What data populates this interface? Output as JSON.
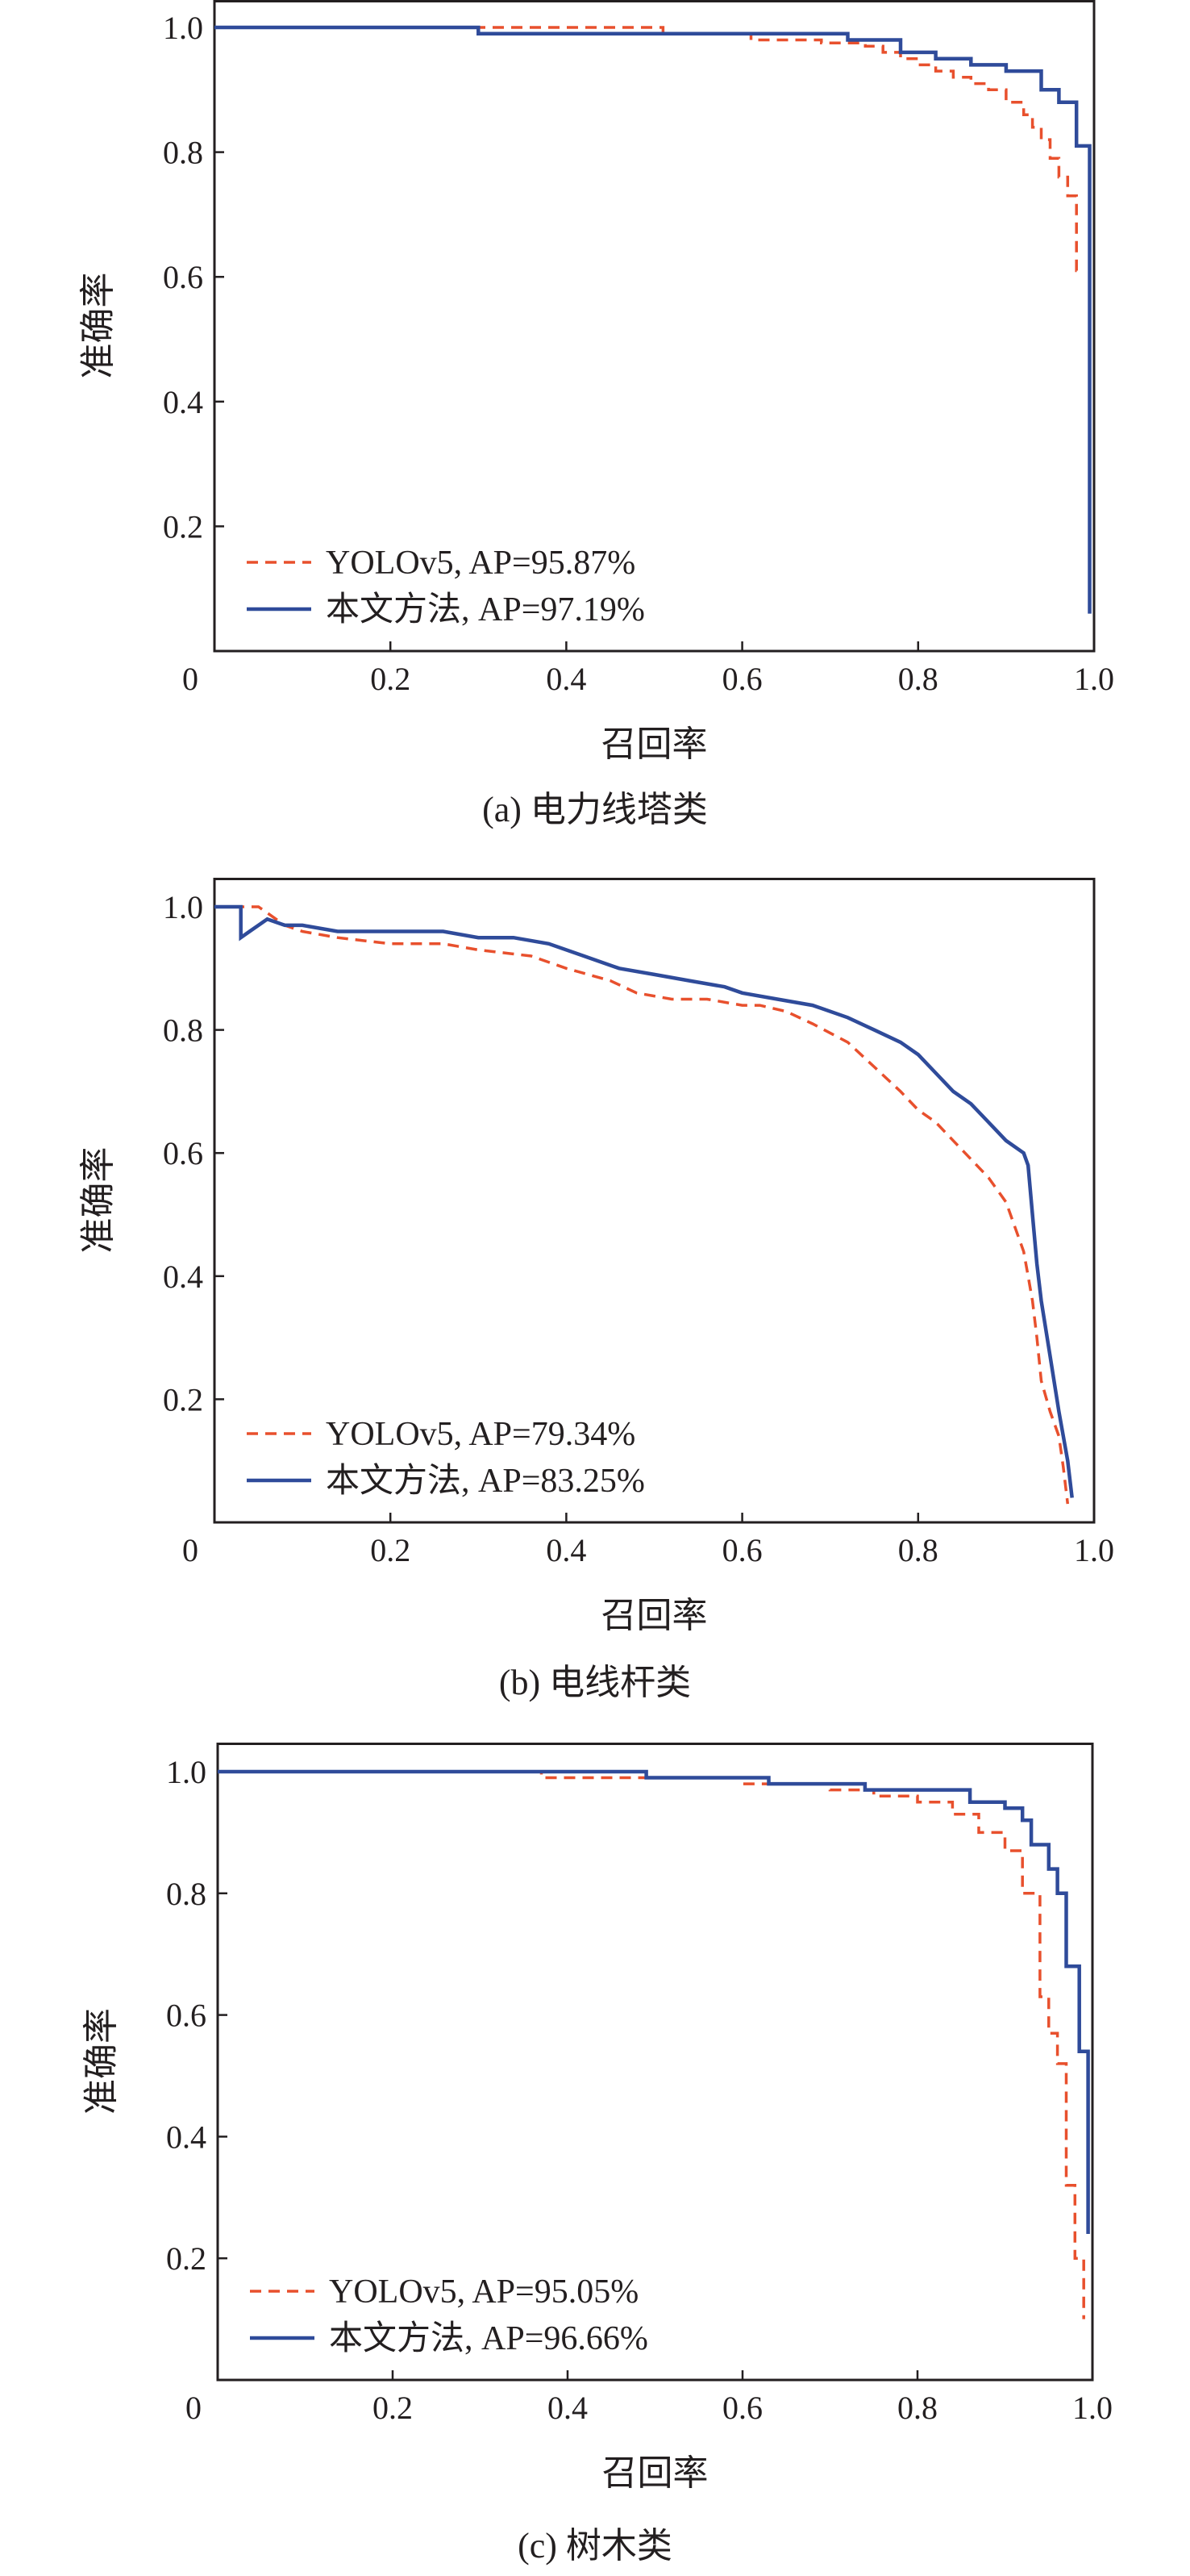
{
  "figure": {
    "panels": [
      {
        "caption": "(a) 电力线塔类"
      },
      {
        "caption": "(b) 电线杆类"
      },
      {
        "caption": "(c) 树木类"
      }
    ]
  },
  "colors": {
    "yolo": "#e8502d",
    "ours": "#2f4b9a",
    "frame": "#231f20"
  },
  "chart_data": [
    {
      "type": "line",
      "caption": "(a) 电力线塔类",
      "xlabel": "召回率",
      "ylabel": "准确率",
      "xlim": [
        0,
        1.0
      ],
      "ylim": [
        0,
        1.0
      ],
      "xticks": [
        "0",
        "0.2",
        "0.4",
        "0.6",
        "0.8",
        "1.0"
      ],
      "yticks": [
        "0.2",
        "0.4",
        "0.6",
        "0.8",
        "1.0"
      ],
      "grid": false,
      "legend": "bottom-left",
      "series": [
        {
          "name": "YOLOv5, AP=95.87%",
          "style": "dashed",
          "color": "#e8502d",
          "x": [
            0.0,
            0.51,
            0.51,
            0.61,
            0.61,
            0.69,
            0.69,
            0.74,
            0.74,
            0.76,
            0.76,
            0.78,
            0.78,
            0.8,
            0.8,
            0.82,
            0.82,
            0.84,
            0.84,
            0.86,
            0.86,
            0.88,
            0.88,
            0.9,
            0.9,
            0.92,
            0.92,
            0.93,
            0.93,
            0.94,
            0.94,
            0.95,
            0.95,
            0.96,
            0.96,
            0.97,
            0.97,
            0.98,
            0.98,
            0.985
          ],
          "y": [
            1.0,
            1.0,
            0.99,
            0.99,
            0.98,
            0.98,
            0.975,
            0.975,
            0.97,
            0.97,
            0.96,
            0.96,
            0.95,
            0.95,
            0.94,
            0.94,
            0.93,
            0.93,
            0.92,
            0.92,
            0.91,
            0.91,
            0.9,
            0.9,
            0.88,
            0.88,
            0.86,
            0.86,
            0.84,
            0.84,
            0.82,
            0.82,
            0.79,
            0.79,
            0.76,
            0.76,
            0.73,
            0.73,
            0.61,
            0.61
          ]
        },
        {
          "name": "本文方法, AP=97.19%",
          "style": "solid",
          "color": "#2f4b9a",
          "x": [
            0.0,
            0.3,
            0.3,
            0.72,
            0.72,
            0.78,
            0.78,
            0.82,
            0.82,
            0.86,
            0.86,
            0.9,
            0.9,
            0.94,
            0.94,
            0.96,
            0.96,
            0.98,
            0.98,
            0.995,
            0.995
          ],
          "y": [
            1.0,
            1.0,
            0.99,
            0.99,
            0.98,
            0.98,
            0.96,
            0.96,
            0.95,
            0.95,
            0.94,
            0.94,
            0.93,
            0.93,
            0.9,
            0.9,
            0.88,
            0.88,
            0.81,
            0.81,
            0.06
          ]
        }
      ]
    },
    {
      "type": "line",
      "caption": "(b) 电线杆类",
      "xlabel": "召回率",
      "ylabel": "准确率",
      "xlim": [
        0,
        1.0
      ],
      "ylim": [
        0,
        1.0
      ],
      "xticks": [
        "0",
        "0.2",
        "0.4",
        "0.6",
        "0.8",
        "1.0"
      ],
      "yticks": [
        "0.2",
        "0.4",
        "0.6",
        "0.8",
        "1.0"
      ],
      "grid": false,
      "legend": "bottom-left",
      "series": [
        {
          "name": "YOLOv5, AP=79.34%",
          "style": "dashed",
          "color": "#e8502d",
          "x": [
            0.0,
            0.05,
            0.06,
            0.08,
            0.1,
            0.14,
            0.2,
            0.26,
            0.3,
            0.36,
            0.4,
            0.45,
            0.48,
            0.52,
            0.56,
            0.6,
            0.62,
            0.65,
            0.68,
            0.72,
            0.75,
            0.78,
            0.8,
            0.82,
            0.84,
            0.86,
            0.88,
            0.9,
            0.91,
            0.92,
            0.925,
            0.93,
            0.935,
            0.94,
            0.95,
            0.96,
            0.965,
            0.97
          ],
          "y": [
            1.0,
            1.0,
            0.99,
            0.97,
            0.96,
            0.95,
            0.94,
            0.94,
            0.93,
            0.92,
            0.9,
            0.88,
            0.86,
            0.85,
            0.85,
            0.84,
            0.84,
            0.83,
            0.81,
            0.78,
            0.74,
            0.7,
            0.67,
            0.65,
            0.62,
            0.59,
            0.56,
            0.52,
            0.48,
            0.44,
            0.4,
            0.36,
            0.3,
            0.23,
            0.18,
            0.14,
            0.09,
            0.03
          ]
        },
        {
          "name": "本文方法, AP=83.25%",
          "style": "solid",
          "color": "#2f4b9a",
          "x": [
            0.0,
            0.03,
            0.03,
            0.04,
            0.06,
            0.08,
            0.1,
            0.14,
            0.2,
            0.26,
            0.3,
            0.34,
            0.38,
            0.42,
            0.46,
            0.5,
            0.54,
            0.58,
            0.6,
            0.64,
            0.68,
            0.72,
            0.75,
            0.78,
            0.8,
            0.82,
            0.84,
            0.86,
            0.88,
            0.9,
            0.92,
            0.925,
            0.93,
            0.935,
            0.94,
            0.95,
            0.96,
            0.97,
            0.975
          ],
          "y": [
            1.0,
            1.0,
            0.95,
            0.96,
            0.98,
            0.97,
            0.97,
            0.96,
            0.96,
            0.96,
            0.95,
            0.95,
            0.94,
            0.92,
            0.9,
            0.89,
            0.88,
            0.87,
            0.86,
            0.85,
            0.84,
            0.82,
            0.8,
            0.78,
            0.76,
            0.73,
            0.7,
            0.68,
            0.65,
            0.62,
            0.6,
            0.58,
            0.5,
            0.42,
            0.36,
            0.27,
            0.18,
            0.1,
            0.04
          ]
        }
      ]
    },
    {
      "type": "line",
      "caption": "(c) 树木类",
      "xlabel": "召回率",
      "ylabel": "准确率",
      "xlim": [
        0,
        1.0
      ],
      "ylim": [
        0,
        1.05
      ],
      "xticks": [
        "0",
        "0.2",
        "0.4",
        "0.6",
        "0.8",
        "1.0"
      ],
      "yticks": [
        "0.2",
        "0.4",
        "0.6",
        "0.8",
        "1.0"
      ],
      "grid": false,
      "legend": "bottom-left",
      "series": [
        {
          "name": "YOLOv5, AP=95.05%",
          "style": "dashed",
          "color": "#e8502d",
          "x": [
            0.0,
            0.37,
            0.37,
            0.6,
            0.6,
            0.7,
            0.7,
            0.75,
            0.75,
            0.8,
            0.8,
            0.84,
            0.84,
            0.87,
            0.87,
            0.9,
            0.9,
            0.92,
            0.92,
            0.94,
            0.94,
            0.95,
            0.95,
            0.96,
            0.96,
            0.97,
            0.97,
            0.98,
            0.98,
            0.99,
            0.99
          ],
          "y": [
            1.0,
            1.0,
            0.99,
            0.99,
            0.98,
            0.98,
            0.97,
            0.97,
            0.96,
            0.96,
            0.95,
            0.95,
            0.93,
            0.93,
            0.9,
            0.9,
            0.87,
            0.87,
            0.8,
            0.8,
            0.63,
            0.63,
            0.57,
            0.57,
            0.52,
            0.52,
            0.32,
            0.32,
            0.2,
            0.2,
            0.1
          ]
        },
        {
          "name": "本文方法, AP=96.66%",
          "style": "solid",
          "color": "#2f4b9a",
          "x": [
            0.0,
            0.49,
            0.49,
            0.63,
            0.63,
            0.74,
            0.74,
            0.86,
            0.86,
            0.9,
            0.9,
            0.92,
            0.92,
            0.93,
            0.93,
            0.95,
            0.95,
            0.96,
            0.96,
            0.97,
            0.97,
            0.985,
            0.985,
            0.995,
            0.995
          ],
          "y": [
            1.0,
            1.0,
            0.99,
            0.99,
            0.98,
            0.98,
            0.97,
            0.97,
            0.95,
            0.95,
            0.94,
            0.94,
            0.92,
            0.92,
            0.88,
            0.88,
            0.84,
            0.84,
            0.8,
            0.8,
            0.68,
            0.68,
            0.54,
            0.54,
            0.24
          ]
        }
      ]
    }
  ]
}
